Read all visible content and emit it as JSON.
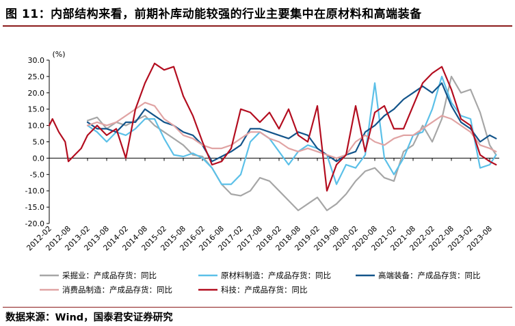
{
  "header": {
    "title": "图 11：内部结构来看，前期补库动能较强的行业主要集中在原材料和高端装备"
  },
  "footer": {
    "source": "数据来源：Wind，国泰君安证券研究"
  },
  "chart_data": {
    "type": "line",
    "unit_label": "(%)",
    "ylim": [
      -20,
      30
    ],
    "yticks": [
      30.0,
      25.0,
      20.0,
      15.0,
      10.0,
      5.0,
      0.0,
      -5.0,
      -10.0,
      -15.0,
      -20.0
    ],
    "ytick_labels": [
      "30.0",
      "25.0",
      "20.0",
      "15.0",
      "10.0",
      "5.0",
      "0.0",
      "-5.0",
      "-10.0",
      "-15.0",
      "-20.0"
    ],
    "xlim": [
      "2012-02",
      "2023-11"
    ],
    "xtick_labels": [
      "2012-02",
      "2012-08",
      "2013-02",
      "2013-08",
      "2014-02",
      "2014-08",
      "2015-02",
      "2015-08",
      "2016-02",
      "2016-08",
      "2017-02",
      "2017-08",
      "2018-02",
      "2018-08",
      "2019-02",
      "2019-08",
      "2020-02",
      "2020-08",
      "2021-02",
      "2021-08",
      "2022-02",
      "2022-08",
      "2023-02",
      "2023-08"
    ],
    "grid": false,
    "legend_position": "bottom",
    "series": [
      {
        "name": "采掘业：产成品存货：同比",
        "color": "#a6a6a6",
        "points": [
          [
            "2013-02",
            11.5
          ],
          [
            "2013-05",
            12.5
          ],
          [
            "2013-08",
            9
          ],
          [
            "2013-11",
            11
          ],
          [
            "2014-02",
            10
          ],
          [
            "2014-05",
            11.5
          ],
          [
            "2014-08",
            13
          ],
          [
            "2014-11",
            10
          ],
          [
            "2015-02",
            8
          ],
          [
            "2015-05",
            6
          ],
          [
            "2015-08",
            4
          ],
          [
            "2015-11",
            1
          ],
          [
            "2016-02",
            0.5
          ],
          [
            "2016-05",
            -3
          ],
          [
            "2016-08",
            -8
          ],
          [
            "2016-11",
            -11
          ],
          [
            "2017-02",
            -11.5
          ],
          [
            "2017-05",
            -10
          ],
          [
            "2017-08",
            -6
          ],
          [
            "2017-11",
            -7
          ],
          [
            "2018-02",
            -10
          ],
          [
            "2018-05",
            -13
          ],
          [
            "2018-08",
            -16
          ],
          [
            "2018-11",
            -14
          ],
          [
            "2019-02",
            -12
          ],
          [
            "2019-05",
            -16
          ],
          [
            "2019-08",
            -14
          ],
          [
            "2019-11",
            -11
          ],
          [
            "2020-02",
            -7
          ],
          [
            "2020-05",
            -4
          ],
          [
            "2020-08",
            -3
          ],
          [
            "2020-11",
            -6
          ],
          [
            "2021-02",
            -7
          ],
          [
            "2021-05",
            2
          ],
          [
            "2021-08",
            4
          ],
          [
            "2021-11",
            10
          ],
          [
            "2022-02",
            5
          ],
          [
            "2022-05",
            12
          ],
          [
            "2022-08",
            25
          ],
          [
            "2022-11",
            20
          ],
          [
            "2023-02",
            21
          ],
          [
            "2023-05",
            14
          ],
          [
            "2023-08",
            4
          ],
          [
            "2023-10",
            1
          ]
        ]
      },
      {
        "name": "原材料制造：产成品存货：同比",
        "color": "#5bc0e8",
        "points": [
          [
            "2013-02",
            10
          ],
          [
            "2013-05",
            8
          ],
          [
            "2013-08",
            5
          ],
          [
            "2013-11",
            8
          ],
          [
            "2014-02",
            7
          ],
          [
            "2014-05",
            9
          ],
          [
            "2014-08",
            12
          ],
          [
            "2014-11",
            12
          ],
          [
            "2015-02",
            6
          ],
          [
            "2015-05",
            1
          ],
          [
            "2015-08",
            0.5
          ],
          [
            "2015-11",
            1.5
          ],
          [
            "2016-02",
            0
          ],
          [
            "2016-05",
            -3
          ],
          [
            "2016-08",
            -8
          ],
          [
            "2016-11",
            -8
          ],
          [
            "2017-02",
            -5
          ],
          [
            "2017-05",
            5
          ],
          [
            "2017-08",
            8
          ],
          [
            "2017-11",
            6
          ],
          [
            "2018-02",
            2
          ],
          [
            "2018-05",
            -2
          ],
          [
            "2018-08",
            2
          ],
          [
            "2018-11",
            4
          ],
          [
            "2019-02",
            3
          ],
          [
            "2019-05",
            1
          ],
          [
            "2019-08",
            -8
          ],
          [
            "2019-11",
            -2
          ],
          [
            "2020-02",
            -3
          ],
          [
            "2020-05",
            1
          ],
          [
            "2020-08",
            23
          ],
          [
            "2020-11",
            0
          ],
          [
            "2021-02",
            -5
          ],
          [
            "2021-05",
            0
          ],
          [
            "2021-08",
            7
          ],
          [
            "2021-11",
            8
          ],
          [
            "2022-02",
            15
          ],
          [
            "2022-05",
            25
          ],
          [
            "2022-08",
            17
          ],
          [
            "2022-11",
            13
          ],
          [
            "2023-02",
            12
          ],
          [
            "2023-05",
            -3
          ],
          [
            "2023-08",
            -2
          ],
          [
            "2023-10",
            1
          ]
        ]
      },
      {
        "name": "高端装备：产成品存货：同比",
        "color": "#12548a",
        "points": [
          [
            "2013-02",
            11
          ],
          [
            "2013-05",
            9
          ],
          [
            "2013-08",
            9
          ],
          [
            "2013-11",
            8
          ],
          [
            "2014-02",
            11
          ],
          [
            "2014-05",
            11
          ],
          [
            "2014-08",
            15
          ],
          [
            "2014-11",
            13
          ],
          [
            "2015-02",
            11
          ],
          [
            "2015-05",
            10
          ],
          [
            "2015-08",
            8
          ],
          [
            "2015-11",
            7
          ],
          [
            "2016-02",
            4
          ],
          [
            "2016-05",
            -1
          ],
          [
            "2016-08",
            0.5
          ],
          [
            "2016-11",
            2
          ],
          [
            "2017-02",
            4
          ],
          [
            "2017-05",
            9
          ],
          [
            "2017-08",
            9
          ],
          [
            "2017-11",
            8
          ],
          [
            "2018-02",
            7
          ],
          [
            "2018-05",
            6
          ],
          [
            "2018-08",
            8
          ],
          [
            "2018-11",
            7
          ],
          [
            "2019-02",
            3
          ],
          [
            "2019-05",
            1
          ],
          [
            "2019-08",
            -1
          ],
          [
            "2019-11",
            1
          ],
          [
            "2020-02",
            2
          ],
          [
            "2020-05",
            8
          ],
          [
            "2020-08",
            10
          ],
          [
            "2020-11",
            13
          ],
          [
            "2021-02",
            15
          ],
          [
            "2021-05",
            18
          ],
          [
            "2021-08",
            20
          ],
          [
            "2021-11",
            22
          ],
          [
            "2022-02",
            20
          ],
          [
            "2022-05",
            23
          ],
          [
            "2022-08",
            16
          ],
          [
            "2022-11",
            11
          ],
          [
            "2023-02",
            9
          ],
          [
            "2023-05",
            5
          ],
          [
            "2023-08",
            7
          ],
          [
            "2023-10",
            6
          ]
        ]
      },
      {
        "name": "消费品制造：产成品存货：同比",
        "color": "#e0a3a3",
        "points": [
          [
            "2013-02",
            10
          ],
          [
            "2013-05",
            11
          ],
          [
            "2013-08",
            10
          ],
          [
            "2013-11",
            11
          ],
          [
            "2014-02",
            13
          ],
          [
            "2014-05",
            15
          ],
          [
            "2014-08",
            17
          ],
          [
            "2014-11",
            16
          ],
          [
            "2015-02",
            12
          ],
          [
            "2015-05",
            10
          ],
          [
            "2015-08",
            7
          ],
          [
            "2015-11",
            6
          ],
          [
            "2016-02",
            4
          ],
          [
            "2016-05",
            3
          ],
          [
            "2016-08",
            3
          ],
          [
            "2016-11",
            4
          ],
          [
            "2017-02",
            6
          ],
          [
            "2017-05",
            8
          ],
          [
            "2017-08",
            8
          ],
          [
            "2017-11",
            6
          ],
          [
            "2018-02",
            5
          ],
          [
            "2018-05",
            3
          ],
          [
            "2018-08",
            2
          ],
          [
            "2018-11",
            3
          ],
          [
            "2019-02",
            2
          ],
          [
            "2019-05",
            1
          ],
          [
            "2019-08",
            0
          ],
          [
            "2019-11",
            1
          ],
          [
            "2020-02",
            5
          ],
          [
            "2020-05",
            7
          ],
          [
            "2020-08",
            5
          ],
          [
            "2020-11",
            4
          ],
          [
            "2021-02",
            6
          ],
          [
            "2021-05",
            7
          ],
          [
            "2021-08",
            7
          ],
          [
            "2021-11",
            9
          ],
          [
            "2022-02",
            11
          ],
          [
            "2022-05",
            13
          ],
          [
            "2022-08",
            12
          ],
          [
            "2022-11",
            10
          ],
          [
            "2023-02",
            8
          ],
          [
            "2023-05",
            4
          ],
          [
            "2023-08",
            3
          ],
          [
            "2023-10",
            2
          ]
        ]
      },
      {
        "name": "科技：产成品存货：同比",
        "color": "#b30d1f",
        "points": [
          [
            "2012-02",
            10
          ],
          [
            "2012-03",
            12
          ],
          [
            "2012-05",
            8
          ],
          [
            "2012-07",
            5
          ],
          [
            "2012-08",
            -1
          ],
          [
            "2012-10",
            1
          ],
          [
            "2012-12",
            3
          ],
          [
            "2013-02",
            7
          ],
          [
            "2013-05",
            10
          ],
          [
            "2013-08",
            7
          ],
          [
            "2013-11",
            9
          ],
          [
            "2014-02",
            0
          ],
          [
            "2014-05",
            15
          ],
          [
            "2014-08",
            23
          ],
          [
            "2014-11",
            29
          ],
          [
            "2015-02",
            27
          ],
          [
            "2015-05",
            28
          ],
          [
            "2015-08",
            19
          ],
          [
            "2015-11",
            13
          ],
          [
            "2016-02",
            5
          ],
          [
            "2016-05",
            -2
          ],
          [
            "2016-08",
            -1
          ],
          [
            "2016-11",
            3
          ],
          [
            "2017-02",
            15
          ],
          [
            "2017-05",
            14
          ],
          [
            "2017-08",
            11
          ],
          [
            "2017-11",
            14
          ],
          [
            "2018-02",
            9
          ],
          [
            "2018-05",
            15
          ],
          [
            "2018-08",
            7
          ],
          [
            "2018-11",
            5
          ],
          [
            "2019-02",
            16
          ],
          [
            "2019-05",
            -10
          ],
          [
            "2019-08",
            -2
          ],
          [
            "2019-11",
            1
          ],
          [
            "2020-02",
            16
          ],
          [
            "2020-05",
            2
          ],
          [
            "2020-08",
            14
          ],
          [
            "2020-11",
            16
          ],
          [
            "2021-02",
            9
          ],
          [
            "2021-05",
            9
          ],
          [
            "2021-08",
            16
          ],
          [
            "2021-11",
            23
          ],
          [
            "2022-02",
            26
          ],
          [
            "2022-05",
            28
          ],
          [
            "2022-08",
            21
          ],
          [
            "2022-11",
            12
          ],
          [
            "2023-02",
            10
          ],
          [
            "2023-05",
            1
          ],
          [
            "2023-08",
            -1
          ],
          [
            "2023-10",
            -2
          ]
        ]
      }
    ]
  }
}
